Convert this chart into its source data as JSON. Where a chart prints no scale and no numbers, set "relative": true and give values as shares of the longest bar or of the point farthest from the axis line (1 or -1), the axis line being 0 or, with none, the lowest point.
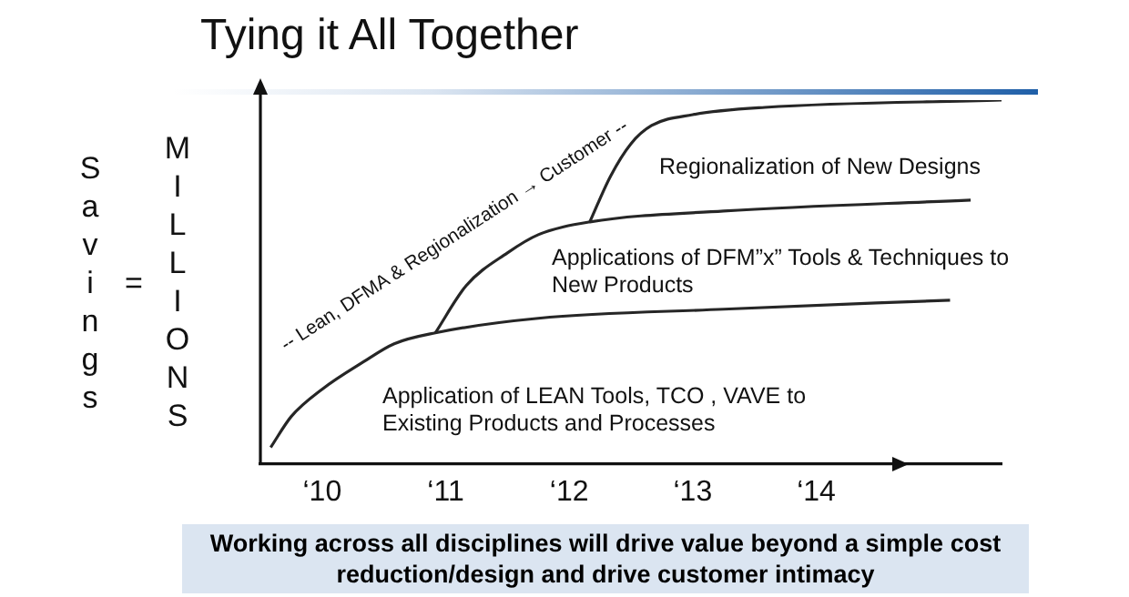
{
  "chart_data": {
    "type": "line",
    "title": "Tying it All Together",
    "ylabel": "Savings = MILLIONS",
    "relative": true,
    "legend": false,
    "grid": false,
    "marker": "none",
    "line_style": "solid",
    "xlim": [
      "2009-07",
      "2015-07"
    ],
    "xticks": [
      {
        "value": "2010",
        "label": "‘10"
      },
      {
        "value": "2011",
        "label": "‘11"
      },
      {
        "value": "2012",
        "label": "‘12"
      },
      {
        "value": "2013",
        "label": "‘13"
      },
      {
        "value": "2014",
        "label": "‘14"
      }
    ],
    "series": [
      {
        "name": "Application of LEAN Tools, TCO , VAVE to Existing Products and Processes",
        "color": "#262626",
        "x": [
          "2009-08",
          "2009-10",
          "2010-01",
          "2010-05",
          "2010-08",
          "2010-12",
          "2011-10",
          "2013-04",
          "2015-02"
        ],
        "values": [
          0.045,
          0.13,
          0.205,
          0.28,
          0.33,
          0.36,
          0.4,
          0.425,
          0.45
        ]
      },
      {
        "name": "Applications of DFM”x” Tools & Techniques to New Products",
        "color": "#262626",
        "x": [
          "2010-12",
          "2011-03",
          "2011-07",
          "2011-10",
          "2012-03",
          "2013-04",
          "2015-04"
        ],
        "values": [
          0.36,
          0.49,
          0.58,
          0.63,
          0.665,
          0.695,
          0.725
        ]
      },
      {
        "name": "Regionalization of New Designs",
        "color": "#262626",
        "x": [
          "2012-03",
          "2012-05",
          "2012-07",
          "2012-09",
          "2013-01",
          "2013-08",
          "2015-07"
        ],
        "values": [
          0.665,
          0.79,
          0.88,
          0.93,
          0.96,
          0.98,
          1.0
        ]
      }
    ],
    "annotations": [
      "-- Lean, DFMA & Regionalization → Customer --",
      "Working across all disciplines will drive value beyond a simple cost reduction/design and drive customer intimacy"
    ]
  }
}
